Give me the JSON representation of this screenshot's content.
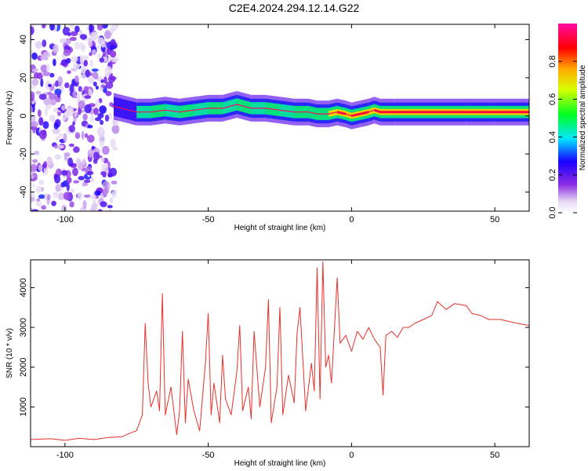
{
  "figure": {
    "title": "C2E4.2024.294.12.14.G22"
  },
  "chart_data": [
    {
      "type": "heatmap",
      "title": "C2E4.2024.294.12.14.G22",
      "xlabel": "Height of straight line (km)",
      "ylabel": "Frequency (Hz)",
      "xlim": [
        -112,
        62
      ],
      "ylim": [
        -50,
        48
      ],
      "xticks": [
        -100,
        -50,
        0,
        50
      ],
      "xtick_labels": [
        "-100",
        "-50",
        "0",
        "50"
      ],
      "yticks": [
        -40,
        -20,
        0,
        20,
        40
      ],
      "ytick_labels": [
        "-40",
        "-20",
        "0",
        "20",
        "40"
      ],
      "grid": false,
      "colorbar": {
        "label": "Normalized spectral amplitude",
        "range": [
          0,
          1
        ],
        "ticks": [
          0.0,
          0.2,
          0.4,
          0.6,
          0.8
        ],
        "tick_labels": [
          "0.0",
          "0.2",
          "0.4",
          "0.6",
          "0.8"
        ]
      },
      "ridge": {
        "x": [
          -83,
          -75,
          -70,
          -65,
          -60,
          -55,
          -50,
          -45,
          -40,
          -35,
          -30,
          -25,
          -20,
          -15,
          -12,
          -8,
          -5,
          -2,
          0,
          3,
          6,
          8,
          10,
          15,
          20,
          30,
          40,
          50,
          62
        ],
        "y": [
          5,
          2,
          2,
          3,
          2,
          3,
          4,
          4,
          6,
          4,
          4,
          3,
          2,
          2,
          1,
          1,
          2,
          1,
          0,
          1,
          2,
          3,
          2,
          2,
          2,
          2,
          2,
          2,
          2
        ],
        "amplitude": [
          0.25,
          0.45,
          0.5,
          0.45,
          0.55,
          0.45,
          0.5,
          0.45,
          0.5,
          0.45,
          0.5,
          0.45,
          0.5,
          0.6,
          0.55,
          0.7,
          0.85,
          0.8,
          0.9,
          0.85,
          0.8,
          0.85,
          0.9,
          0.9,
          0.95,
          0.95,
          0.95,
          0.95,
          0.95
        ]
      },
      "noise_region": {
        "x_range": [
          -112,
          -82
        ],
        "y_range": [
          -50,
          48
        ],
        "amplitude_range": [
          0.05,
          0.3
        ]
      }
    },
    {
      "type": "line",
      "title": "",
      "xlabel": "Height of straight line (km)",
      "ylabel": "SNR (10 * v/v)",
      "xlim": [
        -112,
        62
      ],
      "ylim": [
        0,
        4700
      ],
      "xticks": [
        -100,
        -50,
        0,
        50
      ],
      "xtick_labels": [
        "-100",
        "-50",
        "0",
        "50"
      ],
      "yticks": [
        1000,
        2000,
        3000,
        4000
      ],
      "ytick_labels": [
        "1000",
        "2000",
        "3000",
        "4000"
      ],
      "grid": false,
      "series": [
        {
          "color": "#e8302c",
          "x": [
            -112,
            -105,
            -100,
            -95,
            -90,
            -85,
            -80,
            -77,
            -75,
            -73,
            -72,
            -71,
            -70,
            -68,
            -67,
            -66,
            -65,
            -63,
            -61,
            -60,
            -59,
            -58,
            -57,
            -55,
            -53,
            -51,
            -50,
            -49,
            -48,
            -46,
            -45,
            -44,
            -42,
            -40,
            -39,
            -38,
            -36,
            -35,
            -34,
            -32,
            -30,
            -29,
            -28,
            -26,
            -25,
            -24,
            -22,
            -20,
            -19,
            -18,
            -16,
            -14,
            -13,
            -12,
            -11,
            -10,
            -9,
            -8,
            -7,
            -5,
            -4,
            -2,
            0,
            2,
            4,
            6,
            8,
            10,
            11,
            12,
            14,
            16,
            18,
            20,
            22,
            25,
            28,
            30,
            33,
            36,
            40,
            42,
            45,
            48,
            52,
            55,
            58,
            62
          ],
          "y": [
            180,
            200,
            160,
            210,
            180,
            230,
            250,
            350,
            400,
            800,
            3100,
            1600,
            1000,
            1400,
            900,
            3850,
            800,
            1500,
            300,
            900,
            2900,
            600,
            1700,
            900,
            400,
            2100,
            3350,
            800,
            1600,
            600,
            2300,
            1200,
            800,
            1900,
            3050,
            900,
            1500,
            700,
            2900,
            1000,
            2000,
            3700,
            600,
            1500,
            3500,
            800,
            1800,
            1100,
            2850,
            3500,
            900,
            2100,
            1400,
            4500,
            1200,
            4650,
            2000,
            2300,
            1600,
            4250,
            2600,
            2800,
            2400,
            2900,
            2700,
            3000,
            2700,
            2500,
            1300,
            2800,
            2900,
            2750,
            3000,
            3000,
            3100,
            3200,
            3300,
            3650,
            3450,
            3600,
            3550,
            3350,
            3300,
            3200,
            3200,
            3150,
            3100,
            3050
          ]
        }
      ]
    }
  ]
}
